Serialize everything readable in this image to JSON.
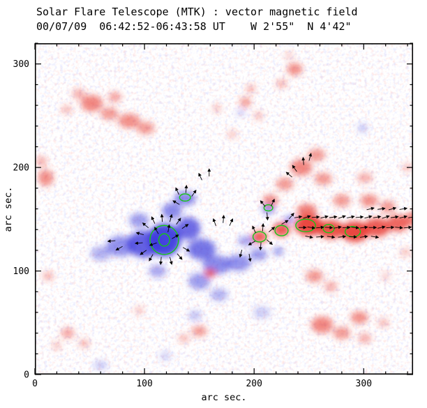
{
  "header": {
    "title": "Solar Flare Telescope (MTK) : vector magnetic field",
    "subtitle": "00/07/09  06:42:52-06:43:58 UT    W 2'55\"  N 4'42\""
  },
  "axes": {
    "x": {
      "label": "arc sec.",
      "min": 0,
      "max": 345,
      "major_ticks": [
        0,
        100,
        200,
        300
      ],
      "minor_step": 20
    },
    "y": {
      "label": "arc sec.",
      "min": 0,
      "max": 320,
      "major_ticks": [
        0,
        100,
        200,
        300
      ],
      "minor_step": 20
    }
  },
  "colors": {
    "positive": "#e8352c",
    "negative": "#3d3bdc",
    "contour": "#17c517",
    "vector": "#000000",
    "axis": "#000000",
    "background": "#ffffff"
  },
  "chart_data": {
    "type": "heatmap",
    "title": "Solar Flare Telescope (MTK) : vector magnetic field",
    "xlabel": "arc sec.",
    "ylabel": "arc sec.",
    "xlim": [
      0,
      345
    ],
    "ylim": [
      0,
      320
    ],
    "colormap": {
      "positive_polarity": "red",
      "negative_polarity": "blue",
      "zero": "white"
    },
    "region_format": "[x_arcsec, y_arcsec, rx_arcsec, ry_arcsec, intensity_0_to_1]",
    "negative_regions": [
      [
        118,
        130,
        15,
        16,
        0.95
      ],
      [
        100,
        126,
        16,
        13,
        0.8
      ],
      [
        78,
        124,
        13,
        10,
        0.55
      ],
      [
        60,
        117,
        9,
        7,
        0.4
      ],
      [
        140,
        141,
        11,
        11,
        0.75
      ],
      [
        152,
        121,
        13,
        10,
        0.7
      ],
      [
        166,
        106,
        13,
        9,
        0.6
      ],
      [
        186,
        108,
        11,
        8,
        0.55
      ],
      [
        204,
        116,
        8,
        6,
        0.5
      ],
      [
        137,
        170,
        10,
        7,
        0.6
      ],
      [
        125,
        158,
        9,
        8,
        0.6
      ],
      [
        150,
        90,
        10,
        8,
        0.5
      ],
      [
        168,
        77,
        8,
        6,
        0.4
      ],
      [
        146,
        57,
        6,
        5,
        0.3
      ],
      [
        95,
        149,
        9,
        7,
        0.5
      ],
      [
        112,
        100,
        8,
        6,
        0.45
      ],
      [
        222,
        119,
        5,
        4,
        0.5
      ],
      [
        193,
        129,
        8,
        5,
        0.45
      ],
      [
        213,
        160,
        6,
        5,
        0.55
      ],
      [
        232,
        150,
        5,
        4,
        0.5
      ],
      [
        207,
        60,
        8,
        6,
        0.25
      ],
      [
        60,
        9,
        6,
        4,
        0.3
      ],
      [
        119,
        18,
        5,
        4,
        0.25
      ],
      [
        299,
        238,
        4,
        4,
        0.35
      ],
      [
        188,
        253,
        4,
        3,
        0.3
      ]
    ],
    "positive_regions": [
      [
        250,
        144,
        13,
        10,
        0.9
      ],
      [
        270,
        140,
        12,
        9,
        0.85
      ],
      [
        292,
        138,
        13,
        10,
        0.9
      ],
      [
        312,
        142,
        12,
        9,
        0.8
      ],
      [
        331,
        146,
        10,
        8,
        0.75
      ],
      [
        345,
        150,
        8,
        7,
        0.6
      ],
      [
        248,
        158,
        9,
        7,
        0.65
      ],
      [
        225,
        140,
        8,
        7,
        0.8
      ],
      [
        205,
        133,
        7,
        6,
        0.8
      ],
      [
        215,
        168,
        7,
        6,
        0.55
      ],
      [
        228,
        184,
        8,
        6,
        0.5
      ],
      [
        243,
        200,
        10,
        8,
        0.6
      ],
      [
        257,
        212,
        8,
        6,
        0.5
      ],
      [
        263,
        189,
        8,
        6,
        0.5
      ],
      [
        280,
        168,
        8,
        6,
        0.5
      ],
      [
        305,
        168,
        8,
        6,
        0.55
      ],
      [
        322,
        162,
        7,
        6,
        0.5
      ],
      [
        301,
        190,
        7,
        5,
        0.4
      ],
      [
        237,
        295,
        7,
        6,
        0.55
      ],
      [
        225,
        281,
        5,
        4,
        0.4
      ],
      [
        192,
        263,
        5,
        5,
        0.5
      ],
      [
        197,
        276,
        4,
        4,
        0.4
      ],
      [
        166,
        257,
        4,
        4,
        0.3
      ],
      [
        52,
        262,
        10,
        8,
        0.6
      ],
      [
        68,
        252,
        8,
        6,
        0.5
      ],
      [
        86,
        245,
        10,
        7,
        0.55
      ],
      [
        101,
        238,
        8,
        6,
        0.5
      ],
      [
        73,
        268,
        6,
        5,
        0.45
      ],
      [
        40,
        271,
        6,
        5,
        0.4
      ],
      [
        29,
        256,
        5,
        4,
        0.35
      ],
      [
        10,
        190,
        7,
        8,
        0.55
      ],
      [
        6,
        206,
        5,
        5,
        0.4
      ],
      [
        12,
        95,
        5,
        4,
        0.4
      ],
      [
        160,
        98,
        5,
        4,
        0.75
      ],
      [
        255,
        95,
        8,
        6,
        0.5
      ],
      [
        270,
        85,
        6,
        5,
        0.4
      ],
      [
        262,
        48,
        10,
        8,
        0.6
      ],
      [
        280,
        40,
        8,
        6,
        0.5
      ],
      [
        296,
        55,
        8,
        6,
        0.55
      ],
      [
        301,
        35,
        6,
        5,
        0.4
      ],
      [
        318,
        50,
        5,
        4,
        0.35
      ],
      [
        150,
        42,
        7,
        5,
        0.5
      ],
      [
        136,
        35,
        5,
        4,
        0.35
      ],
      [
        30,
        40,
        6,
        5,
        0.45
      ],
      [
        45,
        30,
        5,
        4,
        0.35
      ],
      [
        20,
        28,
        4,
        4,
        0.3
      ],
      [
        95,
        62,
        4,
        4,
        0.3
      ],
      [
        232,
        308,
        4,
        3,
        0.3
      ],
      [
        180,
        232,
        4,
        4,
        0.3
      ],
      [
        204,
        250,
        4,
        4,
        0.35
      ],
      [
        338,
        118,
        5,
        4,
        0.3
      ],
      [
        320,
        95,
        4,
        4,
        0.25
      ],
      [
        340,
        200,
        5,
        4,
        0.3
      ]
    ],
    "contours": {
      "color": "green",
      "format": "[x_arcsec, y_arcsec, rx_arcsec, ry_arcsec]",
      "ellipses": [
        [
          118,
          130,
          13,
          14
        ],
        [
          118,
          130,
          5,
          6
        ],
        [
          137,
          171,
          5,
          3.5
        ],
        [
          205,
          133,
          6,
          5
        ],
        [
          225,
          139,
          6,
          5
        ],
        [
          247,
          144,
          9,
          6
        ],
        [
          268,
          141,
          5,
          4
        ],
        [
          290,
          138,
          7,
          5
        ],
        [
          213,
          161,
          4,
          3
        ]
      ]
    },
    "vectors": {
      "format": "[x_arcsec, y_arcsec, angle_deg_ccw_from_east]",
      "length_arcsec": 7,
      "segments": [
        [
          108,
          149,
          115
        ],
        [
          116,
          151,
          95
        ],
        [
          124,
          151,
          75
        ],
        [
          131,
          148,
          55
        ],
        [
          137,
          143,
          35
        ],
        [
          101,
          144,
          140
        ],
        [
          96,
          136,
          165
        ],
        [
          95,
          127,
          185
        ],
        [
          99,
          118,
          215
        ],
        [
          106,
          113,
          240
        ],
        [
          115,
          110,
          265
        ],
        [
          124,
          110,
          285
        ],
        [
          132,
          114,
          310
        ],
        [
          138,
          121,
          330
        ],
        [
          111,
          139,
          120
        ],
        [
          122,
          141,
          80
        ],
        [
          128,
          133,
          30
        ],
        [
          108,
          126,
          200
        ],
        [
          130,
          177,
          115
        ],
        [
          138,
          179,
          85
        ],
        [
          145,
          175,
          55
        ],
        [
          129,
          166,
          150
        ],
        [
          70,
          129,
          185
        ],
        [
          77,
          122,
          210
        ],
        [
          164,
          147,
          110
        ],
        [
          172,
          150,
          85
        ],
        [
          179,
          147,
          65
        ],
        [
          188,
          117,
          255
        ],
        [
          196,
          113,
          280
        ],
        [
          151,
          191,
          115
        ],
        [
          159,
          195,
          90
        ],
        [
          200,
          140,
          115
        ],
        [
          208,
          142,
          85
        ],
        [
          198,
          127,
          210
        ],
        [
          206,
          124,
          265
        ],
        [
          214,
          128,
          320
        ],
        [
          216,
          140,
          40
        ],
        [
          208,
          165,
          130
        ],
        [
          217,
          166,
          65
        ],
        [
          212,
          153,
          275
        ],
        [
          237,
          199,
          125
        ],
        [
          245,
          206,
          95
        ],
        [
          251,
          210,
          75
        ],
        [
          232,
          193,
          140
        ],
        [
          228,
          147,
          30
        ],
        [
          234,
          153,
          50
        ],
        [
          240,
          152,
          10
        ],
        [
          248,
          152,
          18
        ],
        [
          256,
          152,
          5
        ],
        [
          264,
          152,
          14
        ],
        [
          272,
          152,
          8
        ],
        [
          280,
          152,
          20
        ],
        [
          288,
          152,
          12
        ],
        [
          296,
          152,
          6
        ],
        [
          304,
          152,
          16
        ],
        [
          312,
          152,
          10
        ],
        [
          320,
          152,
          18
        ],
        [
          328,
          152,
          8
        ],
        [
          336,
          152,
          14
        ],
        [
          344,
          152,
          10
        ],
        [
          244,
          142,
          0
        ],
        [
          252,
          142,
          -8
        ],
        [
          260,
          142,
          6
        ],
        [
          268,
          142,
          -4
        ],
        [
          276,
          142,
          10
        ],
        [
          284,
          142,
          2
        ],
        [
          292,
          142,
          -6
        ],
        [
          300,
          142,
          8
        ],
        [
          308,
          142,
          0
        ],
        [
          316,
          142,
          12
        ],
        [
          324,
          142,
          4
        ],
        [
          332,
          142,
          -6
        ],
        [
          340,
          142,
          6
        ],
        [
          250,
          133,
          -12
        ],
        [
          260,
          133,
          4
        ],
        [
          270,
          133,
          -8
        ],
        [
          280,
          133,
          6
        ],
        [
          290,
          133,
          -4
        ],
        [
          300,
          133,
          8
        ],
        [
          310,
          133,
          -10
        ],
        [
          306,
          160,
          14
        ],
        [
          316,
          160,
          8
        ],
        [
          326,
          160,
          16
        ],
        [
          336,
          160,
          10
        ]
      ]
    }
  }
}
